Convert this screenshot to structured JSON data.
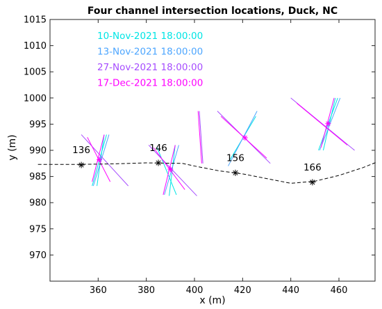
{
  "chart_data": {
    "type": "line",
    "title": "Four channel intersection locations, Duck, NC",
    "xlabel": "x (m)",
    "ylabel": "y (m)",
    "xlim": [
      340,
      475
    ],
    "ylim": [
      965,
      1015
    ],
    "xticks": [
      360,
      380,
      400,
      420,
      440,
      460
    ],
    "yticks": [
      970,
      975,
      980,
      985,
      990,
      995,
      1000,
      1005,
      1010,
      1015
    ],
    "grid": false,
    "legend": {
      "placement": "top-left (inside)",
      "entries": [
        {
          "label": "10-Nov-2021 18:00:00",
          "color": "#00e5e5"
        },
        {
          "label": "13-Nov-2021 18:00:00",
          "color": "#4da6ff"
        },
        {
          "label": "27-Nov-2021 18:00:00",
          "color": "#a64dff"
        },
        {
          "label": "17-Dec-2021 18:00:00",
          "color": "#ff00ff"
        }
      ]
    },
    "shoreline": {
      "style": "dashed",
      "color": "#000000",
      "x": [
        335,
        350,
        365,
        380,
        395,
        400,
        410,
        420,
        430,
        440,
        450,
        460,
        470,
        476
      ],
      "y": [
        987.3,
        987.3,
        987.4,
        987.6,
        987.5,
        987.0,
        986.1,
        985.5,
        984.6,
        983.7,
        984.1,
        985.2,
        986.7,
        987.8
      ]
    },
    "stations": [
      {
        "label": "136",
        "x": 353,
        "y": 987.2
      },
      {
        "label": "146",
        "x": 385,
        "y": 987.6
      },
      {
        "label": "156",
        "x": 417,
        "y": 985.7
      },
      {
        "label": "166",
        "x": 449,
        "y": 983.9
      }
    ],
    "intersections": [
      {
        "x": 360.5,
        "y": 988.2
      },
      {
        "x": 390,
        "y": 986.4
      },
      {
        "x": 421,
        "y": 992.4
      },
      {
        "x": 455.5,
        "y": 995.1
      }
    ],
    "channel_lines": [
      {
        "color": "#00e5e5",
        "segments": [
          [
            [
              357.5,
              983.2
            ],
            [
              363.5,
              993.0
            ]
          ],
          [
            [
              359.5,
              983.2
            ],
            [
              362.5,
              993.0
            ]
          ],
          [
            [
              389.5,
              981.3
            ],
            [
              392.0,
              991.0
            ]
          ],
          [
            [
              384.5,
              990.5
            ],
            [
              392.5,
              981.5
            ]
          ],
          [
            [
              414.5,
              988.0
            ],
            [
              425.5,
              996.5
            ]
          ],
          [
            [
              451.5,
              990.0
            ],
            [
              459.5,
              1000.0
            ]
          ],
          [
            [
              453.5,
              990.0
            ],
            [
              458.5,
              1000.0
            ]
          ]
        ]
      },
      {
        "color": "#4da6ff",
        "segments": [
          [
            [
              358.0,
              983.2
            ],
            [
              364.5,
              993.0
            ]
          ],
          [
            [
              387.5,
              981.5
            ],
            [
              393.5,
              991.0
            ]
          ],
          [
            [
              414.0,
              987.0
            ],
            [
              426.0,
              997.5
            ]
          ],
          [
            [
              452.0,
              990.0
            ],
            [
              460.5,
              1000.0
            ]
          ]
        ]
      },
      {
        "color": "#a64dff",
        "segments": [
          [
            [
              353.0,
              993.0
            ],
            [
              372.5,
              983.2
            ]
          ],
          [
            [
              381.0,
              991.0
            ],
            [
              401.0,
              981.3
            ]
          ],
          [
            [
              409.5,
              997.5
            ],
            [
              431.5,
              987.5
            ]
          ],
          [
            [
              440.0,
              1000.0
            ],
            [
              466.5,
              990.0
            ]
          ],
          [
            [
              402.0,
              997.5
            ],
            [
              403.5,
              987.5
            ]
          ]
        ]
      },
      {
        "color": "#ff00ff",
        "segments": [
          [
            [
              355.5,
              992.5
            ],
            [
              365.0,
              984.0
            ]
          ],
          [
            [
              383.0,
              990.5
            ],
            [
              396.0,
              982.5
            ]
          ],
          [
            [
              411.0,
              996.5
            ],
            [
              430.0,
              988.5
            ]
          ],
          [
            [
              442.5,
              999.0
            ],
            [
              463.5,
              991.0
            ]
          ],
          [
            [
              357.5,
              984.0
            ],
            [
              362.5,
              993.0
            ]
          ],
          [
            [
              387.0,
              981.5
            ],
            [
              392.0,
              991.0
            ]
          ],
          [
            [
              452.5,
              990.5
            ],
            [
              458.0,
              1000.0
            ]
          ],
          [
            [
              401.5,
              997.5
            ],
            [
              403.0,
              987.5
            ]
          ]
        ]
      }
    ]
  }
}
